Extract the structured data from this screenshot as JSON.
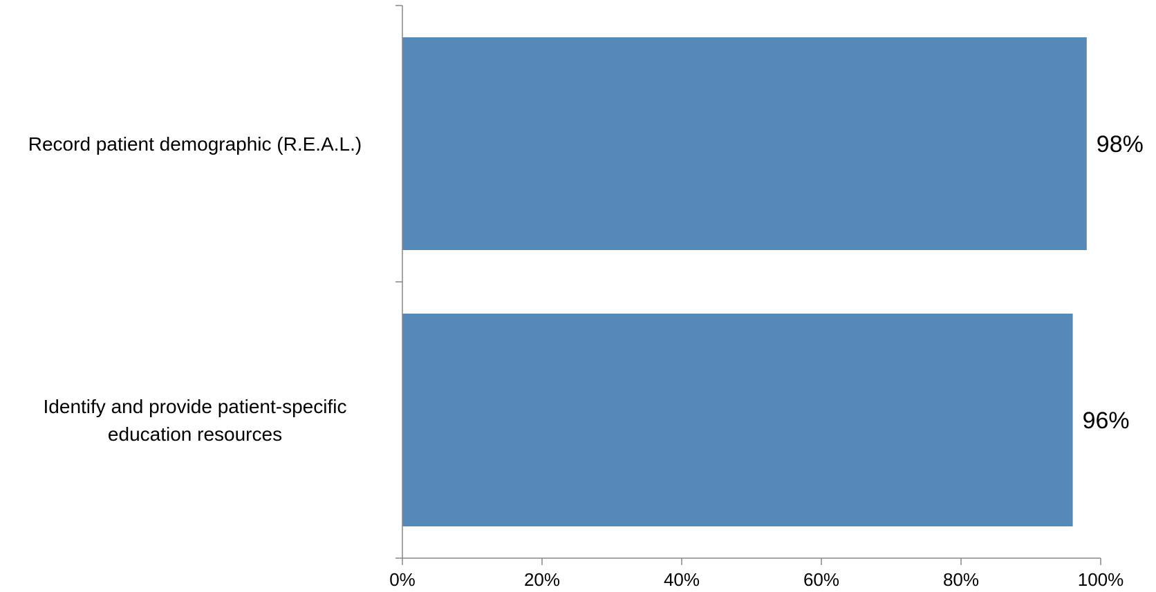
{
  "chart_data": {
    "type": "bar",
    "orientation": "horizontal",
    "categories": [
      "Record patient demographic (R.E.A.L.)",
      "Identify and provide patient-specific education resources"
    ],
    "category_label_lines": [
      [
        "Record patient demographic (R.E.A.L.)"
      ],
      [
        "Identify and provide patient-specific",
        "education resources"
      ]
    ],
    "values": [
      98,
      96
    ],
    "data_labels": [
      "98%",
      "96%"
    ],
    "xlim": [
      0,
      100
    ],
    "xticks": [
      0,
      20,
      40,
      60,
      80,
      100
    ],
    "xtick_labels": [
      "0%",
      "20%",
      "40%",
      "60%",
      "80%",
      "100%"
    ],
    "title": "",
    "xlabel": "",
    "ylabel": "",
    "grid": false,
    "legend": "none",
    "bar_color": "#5689B8",
    "axis_color": "#878787"
  }
}
